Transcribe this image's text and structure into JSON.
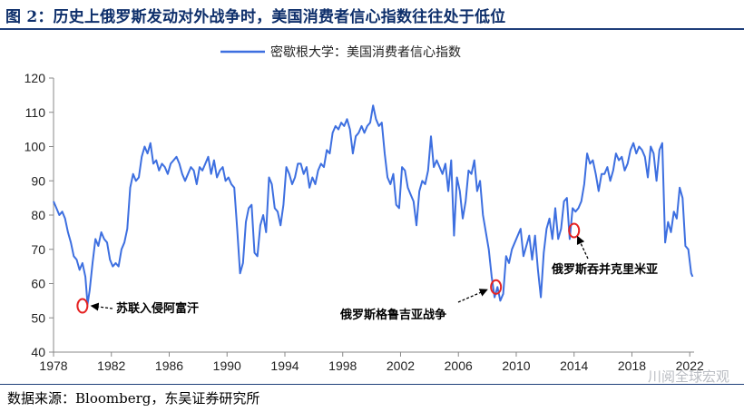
{
  "header": {
    "title": "图 2：历史上俄罗斯发动对外战争时，美国消费者信心指数往往处于低位"
  },
  "footer": {
    "source": "数据来源：Bloomberg，东吴证券研究所",
    "watermark": "川阅全球宏观"
  },
  "colors": {
    "series": "#3d6fe0",
    "marker": "#e52222",
    "title": "#0e2f6b"
  },
  "chart_data": {
    "type": "line",
    "series": [
      {
        "name": "密歇根大学：美国消费者信心指数",
        "points": [
          [
            1978.0,
            84
          ],
          [
            1978.2,
            82
          ],
          [
            1978.4,
            80
          ],
          [
            1978.6,
            81
          ],
          [
            1978.8,
            79
          ],
          [
            1979.0,
            75
          ],
          [
            1979.2,
            72
          ],
          [
            1979.4,
            68
          ],
          [
            1979.6,
            67
          ],
          [
            1979.8,
            64
          ],
          [
            1980.0,
            66
          ],
          [
            1980.2,
            62
          ],
          [
            1980.35,
            54
          ],
          [
            1980.5,
            58
          ],
          [
            1980.7,
            66
          ],
          [
            1980.9,
            73
          ],
          [
            1981.1,
            71
          ],
          [
            1981.3,
            75
          ],
          [
            1981.5,
            73
          ],
          [
            1981.7,
            72
          ],
          [
            1981.9,
            67
          ],
          [
            1982.1,
            65
          ],
          [
            1982.3,
            66
          ],
          [
            1982.5,
            65
          ],
          [
            1982.7,
            70
          ],
          [
            1982.9,
            72
          ],
          [
            1983.1,
            76
          ],
          [
            1983.3,
            88
          ],
          [
            1983.5,
            92
          ],
          [
            1983.7,
            90
          ],
          [
            1983.9,
            91
          ],
          [
            1984.1,
            97
          ],
          [
            1984.3,
            100
          ],
          [
            1984.5,
            98
          ],
          [
            1984.7,
            101
          ],
          [
            1984.9,
            95
          ],
          [
            1985.1,
            96
          ],
          [
            1985.3,
            93
          ],
          [
            1985.5,
            95
          ],
          [
            1985.7,
            94
          ],
          [
            1985.9,
            92
          ],
          [
            1986.1,
            95
          ],
          [
            1986.3,
            96
          ],
          [
            1986.5,
            97
          ],
          [
            1986.7,
            95
          ],
          [
            1986.9,
            92
          ],
          [
            1987.1,
            90
          ],
          [
            1987.3,
            92
          ],
          [
            1987.5,
            94
          ],
          [
            1987.7,
            93
          ],
          [
            1987.9,
            89
          ],
          [
            1988.1,
            94
          ],
          [
            1988.3,
            93
          ],
          [
            1988.5,
            95
          ],
          [
            1988.7,
            97
          ],
          [
            1988.9,
            92
          ],
          [
            1989.1,
            96
          ],
          [
            1989.3,
            91
          ],
          [
            1989.5,
            93
          ],
          [
            1989.7,
            94
          ],
          [
            1989.9,
            90
          ],
          [
            1990.1,
            91
          ],
          [
            1990.3,
            89
          ],
          [
            1990.5,
            88
          ],
          [
            1990.7,
            76
          ],
          [
            1990.9,
            63
          ],
          [
            1991.1,
            66
          ],
          [
            1991.3,
            78
          ],
          [
            1991.5,
            82
          ],
          [
            1991.7,
            83
          ],
          [
            1991.9,
            69
          ],
          [
            1992.1,
            68
          ],
          [
            1992.3,
            77
          ],
          [
            1992.5,
            80
          ],
          [
            1992.7,
            75
          ],
          [
            1992.9,
            91
          ],
          [
            1993.1,
            89
          ],
          [
            1993.3,
            82
          ],
          [
            1993.5,
            81
          ],
          [
            1993.7,
            77
          ],
          [
            1993.9,
            83
          ],
          [
            1994.1,
            94
          ],
          [
            1994.3,
            92
          ],
          [
            1994.5,
            89
          ],
          [
            1994.7,
            91
          ],
          [
            1994.9,
            95
          ],
          [
            1995.1,
            95
          ],
          [
            1995.3,
            92
          ],
          [
            1995.5,
            94
          ],
          [
            1995.7,
            88
          ],
          [
            1995.9,
            91
          ],
          [
            1996.1,
            89
          ],
          [
            1996.3,
            93
          ],
          [
            1996.5,
            95
          ],
          [
            1996.7,
            94
          ],
          [
            1996.9,
            99
          ],
          [
            1997.1,
            98
          ],
          [
            1997.3,
            104
          ],
          [
            1997.5,
            106
          ],
          [
            1997.7,
            105
          ],
          [
            1997.9,
            107
          ],
          [
            1998.1,
            106
          ],
          [
            1998.3,
            108
          ],
          [
            1998.5,
            105
          ],
          [
            1998.7,
            98
          ],
          [
            1998.9,
            103
          ],
          [
            1999.1,
            104
          ],
          [
            1999.3,
            106
          ],
          [
            1999.5,
            104
          ],
          [
            1999.7,
            106
          ],
          [
            1999.9,
            107
          ],
          [
            2000.1,
            112
          ],
          [
            2000.3,
            108
          ],
          [
            2000.5,
            106
          ],
          [
            2000.7,
            107
          ],
          [
            2000.9,
            98
          ],
          [
            2001.1,
            91
          ],
          [
            2001.3,
            89
          ],
          [
            2001.5,
            92
          ],
          [
            2001.7,
            83
          ],
          [
            2001.9,
            82
          ],
          [
            2002.1,
            94
          ],
          [
            2002.3,
            93
          ],
          [
            2002.5,
            88
          ],
          [
            2002.7,
            86
          ],
          [
            2002.9,
            84
          ],
          [
            2003.1,
            77
          ],
          [
            2003.3,
            87
          ],
          [
            2003.5,
            90
          ],
          [
            2003.7,
            89
          ],
          [
            2003.9,
            93
          ],
          [
            2004.1,
            103
          ],
          [
            2004.3,
            94
          ],
          [
            2004.5,
            96
          ],
          [
            2004.7,
            94
          ],
          [
            2004.9,
            92
          ],
          [
            2005.1,
            95
          ],
          [
            2005.3,
            87
          ],
          [
            2005.5,
            96
          ],
          [
            2005.7,
            74
          ],
          [
            2005.9,
            91
          ],
          [
            2006.1,
            87
          ],
          [
            2006.3,
            79
          ],
          [
            2006.5,
            84
          ],
          [
            2006.7,
            93
          ],
          [
            2006.9,
            92
          ],
          [
            2007.1,
            96
          ],
          [
            2007.3,
            87
          ],
          [
            2007.5,
            90
          ],
          [
            2007.7,
            80
          ],
          [
            2007.9,
            75
          ],
          [
            2008.1,
            70
          ],
          [
            2008.3,
            62
          ],
          [
            2008.5,
            56
          ],
          [
            2008.7,
            59
          ],
          [
            2008.9,
            55
          ],
          [
            2009.1,
            57
          ],
          [
            2009.3,
            68
          ],
          [
            2009.5,
            66
          ],
          [
            2009.7,
            70
          ],
          [
            2009.9,
            72
          ],
          [
            2010.1,
            74
          ],
          [
            2010.3,
            76
          ],
          [
            2010.5,
            68
          ],
          [
            2010.7,
            71
          ],
          [
            2010.9,
            74
          ],
          [
            2011.1,
            67
          ],
          [
            2011.3,
            74
          ],
          [
            2011.5,
            64
          ],
          [
            2011.7,
            56
          ],
          [
            2011.9,
            69
          ],
          [
            2012.1,
            76
          ],
          [
            2012.3,
            79
          ],
          [
            2012.5,
            73
          ],
          [
            2012.7,
            82
          ],
          [
            2012.9,
            73
          ],
          [
            2013.1,
            76
          ],
          [
            2013.3,
            84
          ],
          [
            2013.5,
            85
          ],
          [
            2013.7,
            73
          ],
          [
            2013.9,
            82
          ],
          [
            2014.1,
            81
          ],
          [
            2014.3,
            82
          ],
          [
            2014.5,
            84
          ],
          [
            2014.7,
            89
          ],
          [
            2014.9,
            98
          ],
          [
            2015.1,
            95
          ],
          [
            2015.3,
            96
          ],
          [
            2015.5,
            92
          ],
          [
            2015.7,
            87
          ],
          [
            2015.9,
            92
          ],
          [
            2016.1,
            92
          ],
          [
            2016.3,
            94
          ],
          [
            2016.5,
            90
          ],
          [
            2016.7,
            93
          ],
          [
            2016.9,
            98
          ],
          [
            2017.1,
            96
          ],
          [
            2017.3,
            97
          ],
          [
            2017.5,
            93
          ],
          [
            2017.7,
            95
          ],
          [
            2017.9,
            99
          ],
          [
            2018.1,
            101
          ],
          [
            2018.3,
            98
          ],
          [
            2018.5,
            100
          ],
          [
            2018.7,
            99
          ],
          [
            2018.9,
            97
          ],
          [
            2019.1,
            91
          ],
          [
            2019.3,
            100
          ],
          [
            2019.5,
            98
          ],
          [
            2019.7,
            90
          ],
          [
            2019.9,
            99
          ],
          [
            2020.1,
            101
          ],
          [
            2020.3,
            72
          ],
          [
            2020.5,
            78
          ],
          [
            2020.7,
            75
          ],
          [
            2020.9,
            81
          ],
          [
            2021.1,
            79
          ],
          [
            2021.3,
            88
          ],
          [
            2021.5,
            85
          ],
          [
            2021.7,
            71
          ],
          [
            2021.9,
            70
          ],
          [
            2022.1,
            63
          ],
          [
            2022.2,
            62
          ]
        ]
      }
    ],
    "x_ticks": [
      "1978",
      "1982",
      "1986",
      "1990",
      "1994",
      "1998",
      "2002",
      "2006",
      "2010",
      "2014",
      "2018",
      "2022"
    ],
    "y_ticks": [
      "40",
      "50",
      "60",
      "70",
      "80",
      "90",
      "100",
      "110",
      "120"
    ],
    "xlim": [
      1978,
      2022.3
    ],
    "ylim": [
      40,
      120
    ],
    "legend_position": "top-center",
    "grid": false,
    "annotations": [
      {
        "text": "苏联入侵阿富汗",
        "x": 1980.0,
        "y": 53.5
      },
      {
        "text": "俄罗斯格鲁吉亚战争",
        "x": 2008.6,
        "y": 59
      },
      {
        "text": "俄罗斯吞并克里米亚",
        "x": 2014.0,
        "y": 75.5
      }
    ]
  }
}
